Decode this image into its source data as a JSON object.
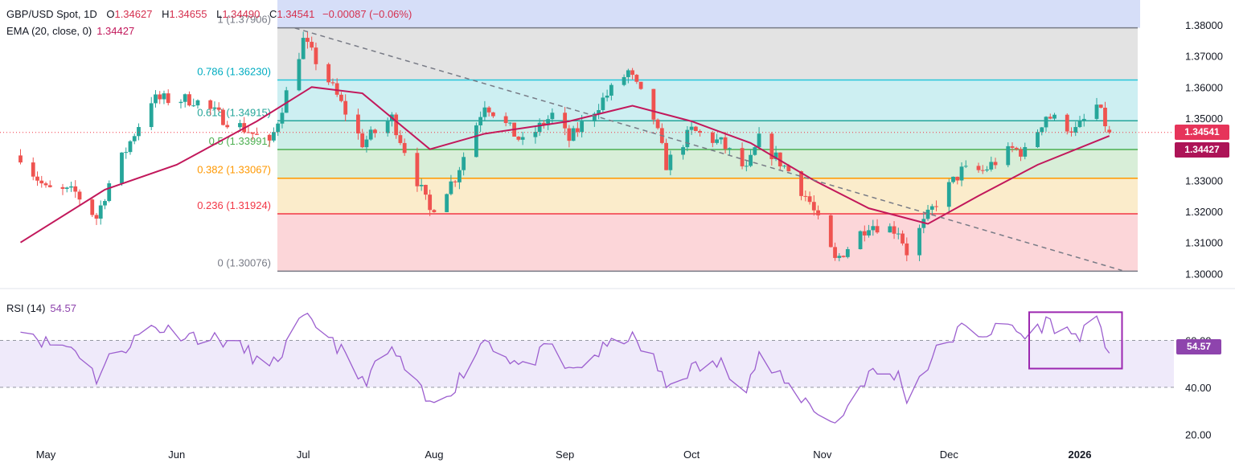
{
  "header": {
    "symbol": "GBP/USD Spot, 1D",
    "o_label": "O",
    "o_value": "1.34627",
    "h_label": "H",
    "h_value": "1.34655",
    "l_label": "L",
    "l_value": "1.34490",
    "c_label": "C",
    "c_value": "1.34541",
    "change": "−0.00087 (−0.06%)"
  },
  "ema_legend": {
    "label": "EMA (20, close, 0)",
    "value": "1.34427"
  },
  "rsi_legend": {
    "label": "RSI (14)",
    "value": "54.57"
  },
  "price_tags": {
    "close": "1.34541",
    "ema": "1.34427",
    "rsi": "54.57"
  },
  "colors": {
    "bull": "#26a69a",
    "bear": "#ef5350",
    "ema": "#c2185b",
    "rsi": "#9c5fcf",
    "rsi_box": "#9c27b0"
  },
  "chart_data": [
    {
      "type": "candlestick",
      "title": "GBP/USD Spot, 1D",
      "x_ticks": [
        "May",
        "Jun",
        "Jul",
        "Aug",
        "Sep",
        "Oct",
        "Nov",
        "Dec",
        "2026"
      ],
      "y_ticks": [
        "1.30000",
        "1.31000",
        "1.32000",
        "1.33000",
        "1.34000",
        "1.35000",
        "1.36000",
        "1.37000",
        "1.38000"
      ],
      "ylim": [
        1.2975,
        1.3875
      ],
      "last_close": 1.34541,
      "ema_last": 1.34427,
      "fibonacci": [
        {
          "level": "1",
          "price": 1.37906,
          "label": "1 (1.37906)"
        },
        {
          "level": "0.786",
          "price": 1.3623,
          "label": "0.786 (1.36230)"
        },
        {
          "level": "0.618",
          "price": 1.34915,
          "label": "0.618 (1.34915)"
        },
        {
          "level": "0.5",
          "price": 1.33991,
          "label": "0.5 (1.33991)"
        },
        {
          "level": "0.382",
          "price": 1.33067,
          "label": "0.382 (1.33067)"
        },
        {
          "level": "0.236",
          "price": 1.31924,
          "label": "0.236 (1.31924)"
        },
        {
          "level": "0",
          "price": 1.30076,
          "label": "0 (1.30076)"
        }
      ],
      "price_path": [
        [
          "Apr 25",
          1.338
        ],
        [
          "May 1",
          1.327
        ],
        [
          "May 8",
          1.326
        ],
        [
          "May 13",
          1.318
        ],
        [
          "May 16",
          1.329
        ],
        [
          "May 26",
          1.356
        ],
        [
          "Jun 5",
          1.356
        ],
        [
          "Jun 12",
          1.35
        ],
        [
          "Jun 18",
          1.346
        ],
        [
          "Jun 23",
          1.341
        ],
        [
          "Jul 1",
          1.375
        ],
        [
          "Jul 7",
          1.362
        ],
        [
          "Jul 15",
          1.342
        ],
        [
          "Jul 22",
          1.35
        ],
        [
          "Jul 31",
          1.32
        ],
        [
          "Aug 6",
          1.331
        ],
        [
          "Aug 13",
          1.355
        ],
        [
          "Aug 22",
          1.342
        ],
        [
          "Aug 29",
          1.351
        ],
        [
          "Sep 2",
          1.343
        ],
        [
          "Sep 10",
          1.356
        ],
        [
          "Sep 16",
          1.365
        ],
        [
          "Sep 22",
          1.35
        ],
        [
          "Sep 25",
          1.335
        ],
        [
          "Oct 1",
          1.346
        ],
        [
          "Oct 8",
          1.342
        ],
        [
          "Oct 14",
          1.333
        ],
        [
          "Oct 17",
          1.343
        ],
        [
          "Oct 24",
          1.333
        ],
        [
          "Oct 29",
          1.323
        ],
        [
          "Nov 4",
          1.304
        ],
        [
          "Nov 12",
          1.316
        ],
        [
          "Nov 19",
          1.314
        ],
        [
          "Nov 21",
          1.307
        ],
        [
          "Nov 28",
          1.323
        ],
        [
          "Dec 4",
          1.333
        ],
        [
          "Dec 9",
          1.333
        ],
        [
          "Dec 16",
          1.34
        ],
        [
          "Dec 19",
          1.339
        ],
        [
          "Dec 24",
          1.351
        ],
        [
          "Dec 31",
          1.346
        ],
        [
          "Jan 5",
          1.354
        ],
        [
          "Jan 8",
          1.3454
        ]
      ],
      "ema_path": [
        [
          "Apr 25",
          1.31
        ],
        [
          "May 15",
          1.327
        ],
        [
          "Jun 1",
          1.335
        ],
        [
          "Jun 20",
          1.349
        ],
        [
          "Jul 3",
          1.36
        ],
        [
          "Jul 15",
          1.358
        ],
        [
          "Jul 31",
          1.34
        ],
        [
          "Aug 13",
          1.345
        ],
        [
          "Sep 2",
          1.349
        ],
        [
          "Sep 17",
          1.354
        ],
        [
          "Oct 1",
          1.349
        ],
        [
          "Oct 15",
          1.342
        ],
        [
          "Oct 30",
          1.33
        ],
        [
          "Nov 12",
          1.321
        ],
        [
          "Nov 26",
          1.316
        ],
        [
          "Dec 8",
          1.325
        ],
        [
          "Dec 22",
          1.335
        ],
        [
          "Jan 8",
          1.3443
        ]
      ],
      "trendline": [
        [
          "Jun 29",
          1.379
        ],
        [
          "Jan 11",
          1.301
        ]
      ]
    },
    {
      "type": "line",
      "title": "RSI (14)",
      "y_ticks": [
        "20.00",
        "40.00",
        "60.00"
      ],
      "ylim": [
        15,
        80
      ],
      "band": [
        40,
        60
      ],
      "last": 54.57,
      "rsi_path": [
        [
          "Apr 25",
          67
        ],
        [
          "May 1",
          59
        ],
        [
          "May 8",
          57
        ],
        [
          "May 13",
          44
        ],
        [
          "May 16",
          52
        ],
        [
          "May 26",
          66
        ],
        [
          "Jun 5",
          62
        ],
        [
          "Jun 12",
          60
        ],
        [
          "Jun 18",
          55
        ],
        [
          "Jun 23",
          47
        ],
        [
          "Jul 1",
          69
        ],
        [
          "Jul 7",
          63
        ],
        [
          "Jul 15",
          42
        ],
        [
          "Jul 22",
          56
        ],
        [
          "Jul 31",
          32
        ],
        [
          "Aug 6",
          41
        ],
        [
          "Aug 13",
          61
        ],
        [
          "Aug 22",
          48
        ],
        [
          "Aug 29",
          58
        ],
        [
          "Sep 2",
          46
        ],
        [
          "Sep 10",
          56
        ],
        [
          "Sep 16",
          62
        ],
        [
          "Sep 22",
          52
        ],
        [
          "Sep 25",
          40
        ],
        [
          "Oct 1",
          48
        ],
        [
          "Oct 8",
          50
        ],
        [
          "Oct 14",
          41
        ],
        [
          "Oct 17",
          53
        ],
        [
          "Oct 24",
          40
        ],
        [
          "Oct 29",
          33
        ],
        [
          "Nov 4",
          24
        ],
        [
          "Nov 12",
          46
        ],
        [
          "Nov 19",
          45
        ],
        [
          "Nov 21",
          36
        ],
        [
          "Nov 28",
          55
        ],
        [
          "Dec 4",
          65
        ],
        [
          "Dec 9",
          63
        ],
        [
          "Dec 16",
          66
        ],
        [
          "Dec 19",
          61
        ],
        [
          "Dec 24",
          68
        ],
        [
          "Dec 31",
          62
        ],
        [
          "Jan 5",
          67
        ],
        [
          "Jan 8",
          54.57
        ]
      ],
      "highlight_box": {
        "from": "Dec 20",
        "to": "Jan 11",
        "y_low": 48,
        "y_high": 72
      }
    }
  ]
}
